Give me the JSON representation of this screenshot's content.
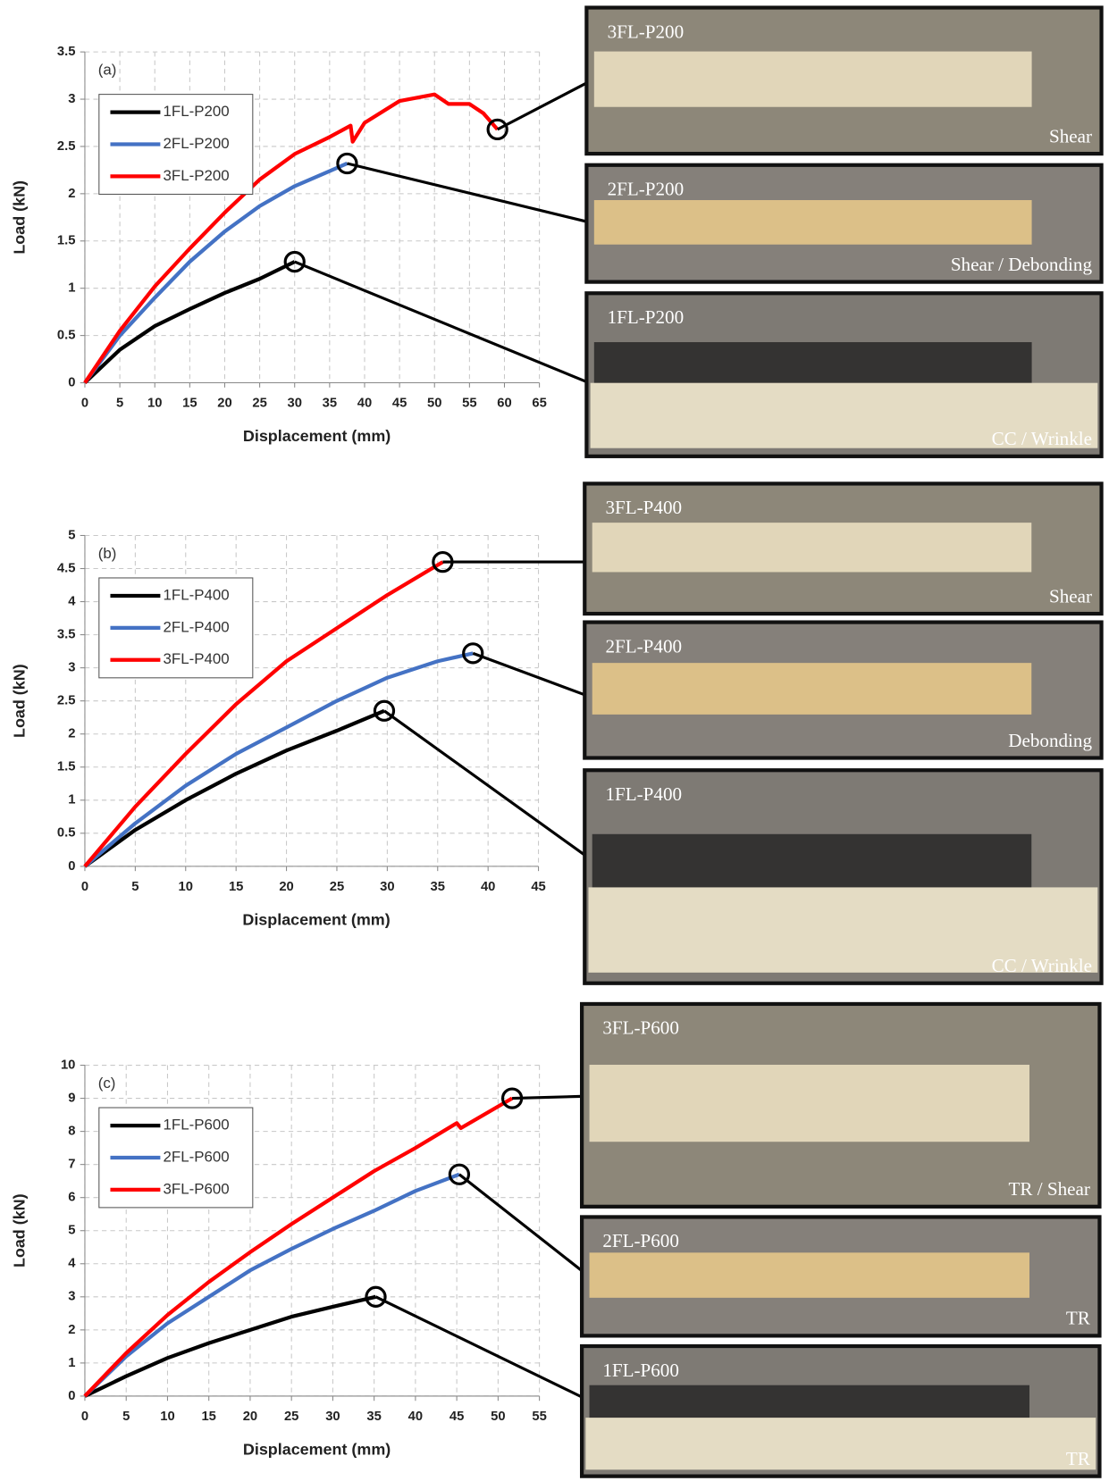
{
  "chart_data": [
    {
      "type": "line",
      "panel_label": "(a)",
      "x_label": "Displacement (mm)",
      "y_label": "Load (kN)",
      "xlim": [
        0,
        65
      ],
      "xticks": [
        0,
        5,
        10,
        15,
        20,
        25,
        30,
        35,
        40,
        45,
        50,
        55,
        60,
        65
      ],
      "ylim": [
        0,
        3.5
      ],
      "yticks": [
        0,
        0.5,
        1,
        1.5,
        2,
        2.5,
        3,
        3.5
      ],
      "grid": true,
      "legend": "upper left",
      "series": [
        {
          "name": "1FL-P200",
          "color": "#000000",
          "x": [
            0,
            5,
            10,
            15,
            20,
            25,
            30
          ],
          "values": [
            0,
            0.35,
            0.6,
            0.78,
            0.95,
            1.1,
            1.28
          ]
        },
        {
          "name": "2FL-P200",
          "color": "#4472c4",
          "x": [
            0,
            5,
            10,
            15,
            20,
            25,
            30,
            35,
            37.5
          ],
          "values": [
            0,
            0.5,
            0.9,
            1.28,
            1.6,
            1.87,
            2.08,
            2.24,
            2.32
          ]
        },
        {
          "name": "3FL-P200",
          "color": "#ff0000",
          "x": [
            0,
            5,
            10,
            15,
            20,
            25,
            30,
            35,
            38,
            38.3,
            40,
            45,
            50,
            52,
            55,
            57,
            59
          ],
          "values": [
            0,
            0.55,
            1.02,
            1.42,
            1.8,
            2.15,
            2.42,
            2.6,
            2.72,
            2.55,
            2.75,
            2.98,
            3.05,
            2.95,
            2.95,
            2.85,
            2.68
          ]
        }
      ]
    },
    {
      "type": "line",
      "panel_label": "(b)",
      "x_label": "Displacement (mm)",
      "y_label": "Load (kN)",
      "xlim": [
        0,
        45
      ],
      "xticks": [
        0,
        5,
        10,
        15,
        20,
        25,
        30,
        35,
        40,
        45
      ],
      "ylim": [
        0,
        5
      ],
      "yticks": [
        0,
        0.5,
        1,
        1.5,
        2,
        2.5,
        3,
        3.5,
        4,
        4.5,
        5
      ],
      "grid": true,
      "legend": "upper left",
      "series": [
        {
          "name": "1FL-P400",
          "color": "#000000",
          "x": [
            0,
            5,
            10,
            15,
            20,
            25,
            29.7
          ],
          "values": [
            0,
            0.55,
            1.0,
            1.4,
            1.75,
            2.05,
            2.35
          ]
        },
        {
          "name": "2FL-P400",
          "color": "#4472c4",
          "x": [
            0,
            5,
            10,
            15,
            20,
            25,
            30,
            35,
            38.5
          ],
          "values": [
            0,
            0.65,
            1.22,
            1.7,
            2.1,
            2.5,
            2.85,
            3.1,
            3.22
          ]
        },
        {
          "name": "3FL-P400",
          "color": "#ff0000",
          "x": [
            0,
            5,
            10,
            15,
            20,
            25,
            30,
            35.5
          ],
          "values": [
            0,
            0.9,
            1.7,
            2.45,
            3.1,
            3.6,
            4.1,
            4.6
          ]
        }
      ]
    },
    {
      "type": "line",
      "panel_label": "(c)",
      "x_label": "Displacement (mm)",
      "y_label": "Load (kN)",
      "xlim": [
        0,
        55
      ],
      "xticks": [
        0,
        5,
        10,
        15,
        20,
        25,
        30,
        35,
        40,
        45,
        50,
        55
      ],
      "ylim": [
        0,
        10
      ],
      "yticks": [
        0,
        1,
        2,
        3,
        4,
        5,
        6,
        7,
        8,
        9,
        10
      ],
      "grid": true,
      "legend": "upper left",
      "series": [
        {
          "name": "1FL-P600",
          "color": "#000000",
          "x": [
            0,
            5,
            10,
            15,
            20,
            25,
            30,
            35.2
          ],
          "values": [
            0,
            0.6,
            1.15,
            1.6,
            2.0,
            2.4,
            2.7,
            3.0
          ]
        },
        {
          "name": "2FL-P600",
          "color": "#4472c4",
          "x": [
            0,
            5,
            10,
            15,
            20,
            25,
            30,
            35,
            40,
            45.3
          ],
          "values": [
            0,
            1.2,
            2.2,
            3.0,
            3.8,
            4.45,
            5.05,
            5.6,
            6.2,
            6.7
          ]
        },
        {
          "name": "3FL-P600",
          "color": "#ff0000",
          "x": [
            0,
            5,
            10,
            15,
            20,
            25,
            30,
            35,
            40,
            45,
            45.5,
            51.7
          ],
          "values": [
            0,
            1.3,
            2.45,
            3.45,
            4.35,
            5.2,
            6.0,
            6.8,
            7.5,
            8.25,
            8.1,
            9.0
          ]
        }
      ]
    }
  ],
  "photos": [
    [
      {
        "specimen": "3FL-P200",
        "failure_mode": "Shear"
      },
      {
        "specimen": "2FL-P200",
        "failure_mode": "Shear / Debonding"
      },
      {
        "specimen": "1FL-P200",
        "failure_mode": "CC / Wrinkle"
      }
    ],
    [
      {
        "specimen": "3FL-P400",
        "failure_mode": "Shear"
      },
      {
        "specimen": "2FL-P400",
        "failure_mode": "Debonding"
      },
      {
        "specimen": "1FL-P400",
        "failure_mode": "CC / Wrinkle"
      }
    ],
    [
      {
        "specimen": "3FL-P600",
        "failure_mode": "TR / Shear"
      },
      {
        "specimen": "2FL-P600",
        "failure_mode": "TR"
      },
      {
        "specimen": "1FL-P600",
        "failure_mode": "TR"
      }
    ]
  ]
}
